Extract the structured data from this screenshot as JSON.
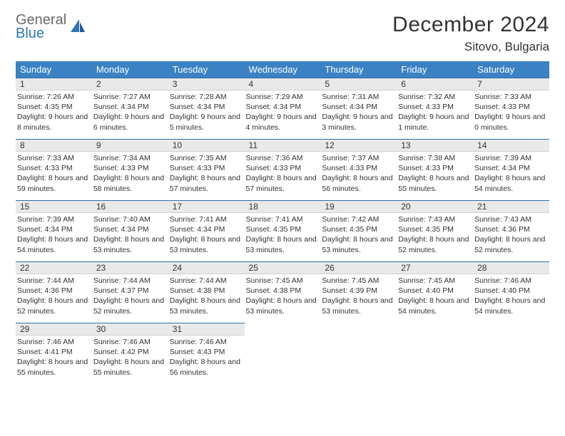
{
  "brand": {
    "line1": "General",
    "line2": "Blue"
  },
  "title": "December 2024",
  "location": "Sitovo, Bulgaria",
  "colors": {
    "header_bg": "#3a82c4",
    "header_text": "#ffffff",
    "daynum_bg": "#e9e9e9",
    "daynum_border_top": "#2f6fa8",
    "logo_gray": "#6a6a6a",
    "logo_blue": "#2f74b5",
    "text": "#333333",
    "background": "#ffffff"
  },
  "typography": {
    "title_fontsize": 30,
    "location_fontsize": 17,
    "weekday_fontsize": 13,
    "daynum_fontsize": 12,
    "body_fontsize": 10.5
  },
  "weekdays": [
    "Sunday",
    "Monday",
    "Tuesday",
    "Wednesday",
    "Thursday",
    "Friday",
    "Saturday"
  ],
  "weeks": [
    [
      {
        "n": "1",
        "sunrise": "Sunrise: 7:26 AM",
        "sunset": "Sunset: 4:35 PM",
        "day": "Daylight: 9 hours and 8 minutes."
      },
      {
        "n": "2",
        "sunrise": "Sunrise: 7:27 AM",
        "sunset": "Sunset: 4:34 PM",
        "day": "Daylight: 9 hours and 6 minutes."
      },
      {
        "n": "3",
        "sunrise": "Sunrise: 7:28 AM",
        "sunset": "Sunset: 4:34 PM",
        "day": "Daylight: 9 hours and 5 minutes."
      },
      {
        "n": "4",
        "sunrise": "Sunrise: 7:29 AM",
        "sunset": "Sunset: 4:34 PM",
        "day": "Daylight: 9 hours and 4 minutes."
      },
      {
        "n": "5",
        "sunrise": "Sunrise: 7:31 AM",
        "sunset": "Sunset: 4:34 PM",
        "day": "Daylight: 9 hours and 3 minutes."
      },
      {
        "n": "6",
        "sunrise": "Sunrise: 7:32 AM",
        "sunset": "Sunset: 4:33 PM",
        "day": "Daylight: 9 hours and 1 minute."
      },
      {
        "n": "7",
        "sunrise": "Sunrise: 7:33 AM",
        "sunset": "Sunset: 4:33 PM",
        "day": "Daylight: 9 hours and 0 minutes."
      }
    ],
    [
      {
        "n": "8",
        "sunrise": "Sunrise: 7:33 AM",
        "sunset": "Sunset: 4:33 PM",
        "day": "Daylight: 8 hours and 59 minutes."
      },
      {
        "n": "9",
        "sunrise": "Sunrise: 7:34 AM",
        "sunset": "Sunset: 4:33 PM",
        "day": "Daylight: 8 hours and 58 minutes."
      },
      {
        "n": "10",
        "sunrise": "Sunrise: 7:35 AM",
        "sunset": "Sunset: 4:33 PM",
        "day": "Daylight: 8 hours and 57 minutes."
      },
      {
        "n": "11",
        "sunrise": "Sunrise: 7:36 AM",
        "sunset": "Sunset: 4:33 PM",
        "day": "Daylight: 8 hours and 57 minutes."
      },
      {
        "n": "12",
        "sunrise": "Sunrise: 7:37 AM",
        "sunset": "Sunset: 4:33 PM",
        "day": "Daylight: 8 hours and 56 minutes."
      },
      {
        "n": "13",
        "sunrise": "Sunrise: 7:38 AM",
        "sunset": "Sunset: 4:33 PM",
        "day": "Daylight: 8 hours and 55 minutes."
      },
      {
        "n": "14",
        "sunrise": "Sunrise: 7:39 AM",
        "sunset": "Sunset: 4:34 PM",
        "day": "Daylight: 8 hours and 54 minutes."
      }
    ],
    [
      {
        "n": "15",
        "sunrise": "Sunrise: 7:39 AM",
        "sunset": "Sunset: 4:34 PM",
        "day": "Daylight: 8 hours and 54 minutes."
      },
      {
        "n": "16",
        "sunrise": "Sunrise: 7:40 AM",
        "sunset": "Sunset: 4:34 PM",
        "day": "Daylight: 8 hours and 53 minutes."
      },
      {
        "n": "17",
        "sunrise": "Sunrise: 7:41 AM",
        "sunset": "Sunset: 4:34 PM",
        "day": "Daylight: 8 hours and 53 minutes."
      },
      {
        "n": "18",
        "sunrise": "Sunrise: 7:41 AM",
        "sunset": "Sunset: 4:35 PM",
        "day": "Daylight: 8 hours and 53 minutes."
      },
      {
        "n": "19",
        "sunrise": "Sunrise: 7:42 AM",
        "sunset": "Sunset: 4:35 PM",
        "day": "Daylight: 8 hours and 53 minutes."
      },
      {
        "n": "20",
        "sunrise": "Sunrise: 7:43 AM",
        "sunset": "Sunset: 4:35 PM",
        "day": "Daylight: 8 hours and 52 minutes."
      },
      {
        "n": "21",
        "sunrise": "Sunrise: 7:43 AM",
        "sunset": "Sunset: 4:36 PM",
        "day": "Daylight: 8 hours and 52 minutes."
      }
    ],
    [
      {
        "n": "22",
        "sunrise": "Sunrise: 7:44 AM",
        "sunset": "Sunset: 4:36 PM",
        "day": "Daylight: 8 hours and 52 minutes."
      },
      {
        "n": "23",
        "sunrise": "Sunrise: 7:44 AM",
        "sunset": "Sunset: 4:37 PM",
        "day": "Daylight: 8 hours and 52 minutes."
      },
      {
        "n": "24",
        "sunrise": "Sunrise: 7:44 AM",
        "sunset": "Sunset: 4:38 PM",
        "day": "Daylight: 8 hours and 53 minutes."
      },
      {
        "n": "25",
        "sunrise": "Sunrise: 7:45 AM",
        "sunset": "Sunset: 4:38 PM",
        "day": "Daylight: 8 hours and 53 minutes."
      },
      {
        "n": "26",
        "sunrise": "Sunrise: 7:45 AM",
        "sunset": "Sunset: 4:39 PM",
        "day": "Daylight: 8 hours and 53 minutes."
      },
      {
        "n": "27",
        "sunrise": "Sunrise: 7:45 AM",
        "sunset": "Sunset: 4:40 PM",
        "day": "Daylight: 8 hours and 54 minutes."
      },
      {
        "n": "28",
        "sunrise": "Sunrise: 7:46 AM",
        "sunset": "Sunset: 4:40 PM",
        "day": "Daylight: 8 hours and 54 minutes."
      }
    ],
    [
      {
        "n": "29",
        "sunrise": "Sunrise: 7:46 AM",
        "sunset": "Sunset: 4:41 PM",
        "day": "Daylight: 8 hours and 55 minutes."
      },
      {
        "n": "30",
        "sunrise": "Sunrise: 7:46 AM",
        "sunset": "Sunset: 4:42 PM",
        "day": "Daylight: 8 hours and 55 minutes."
      },
      {
        "n": "31",
        "sunrise": "Sunrise: 7:46 AM",
        "sunset": "Sunset: 4:43 PM",
        "day": "Daylight: 8 hours and 56 minutes."
      },
      null,
      null,
      null,
      null
    ]
  ]
}
